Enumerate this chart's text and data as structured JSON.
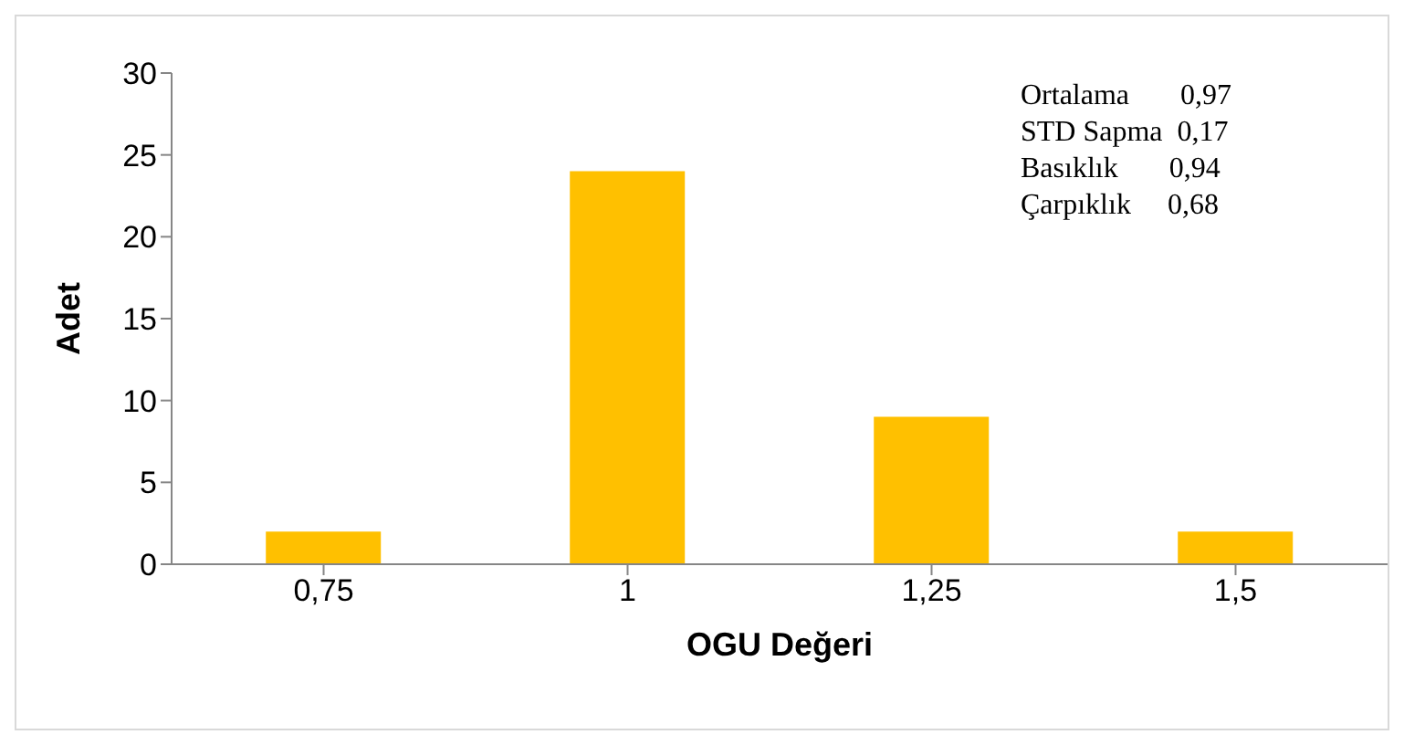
{
  "chart_data": {
    "type": "bar",
    "xlabel": "OGU Değeri",
    "ylabel": "Adet",
    "categories": [
      "0,75",
      "1",
      "1,25",
      "1,5"
    ],
    "values": [
      2,
      24,
      9,
      2
    ],
    "color": "#ffc000",
    "ylim": [
      0,
      30
    ],
    "yticks": [
      0,
      5,
      10,
      15,
      20,
      25,
      30
    ],
    "annotations": [
      "Ortalama       0,97",
      "STD Sapma  0,17",
      "Basıklık       0,94",
      "Çarpıklık     0,68"
    ]
  }
}
